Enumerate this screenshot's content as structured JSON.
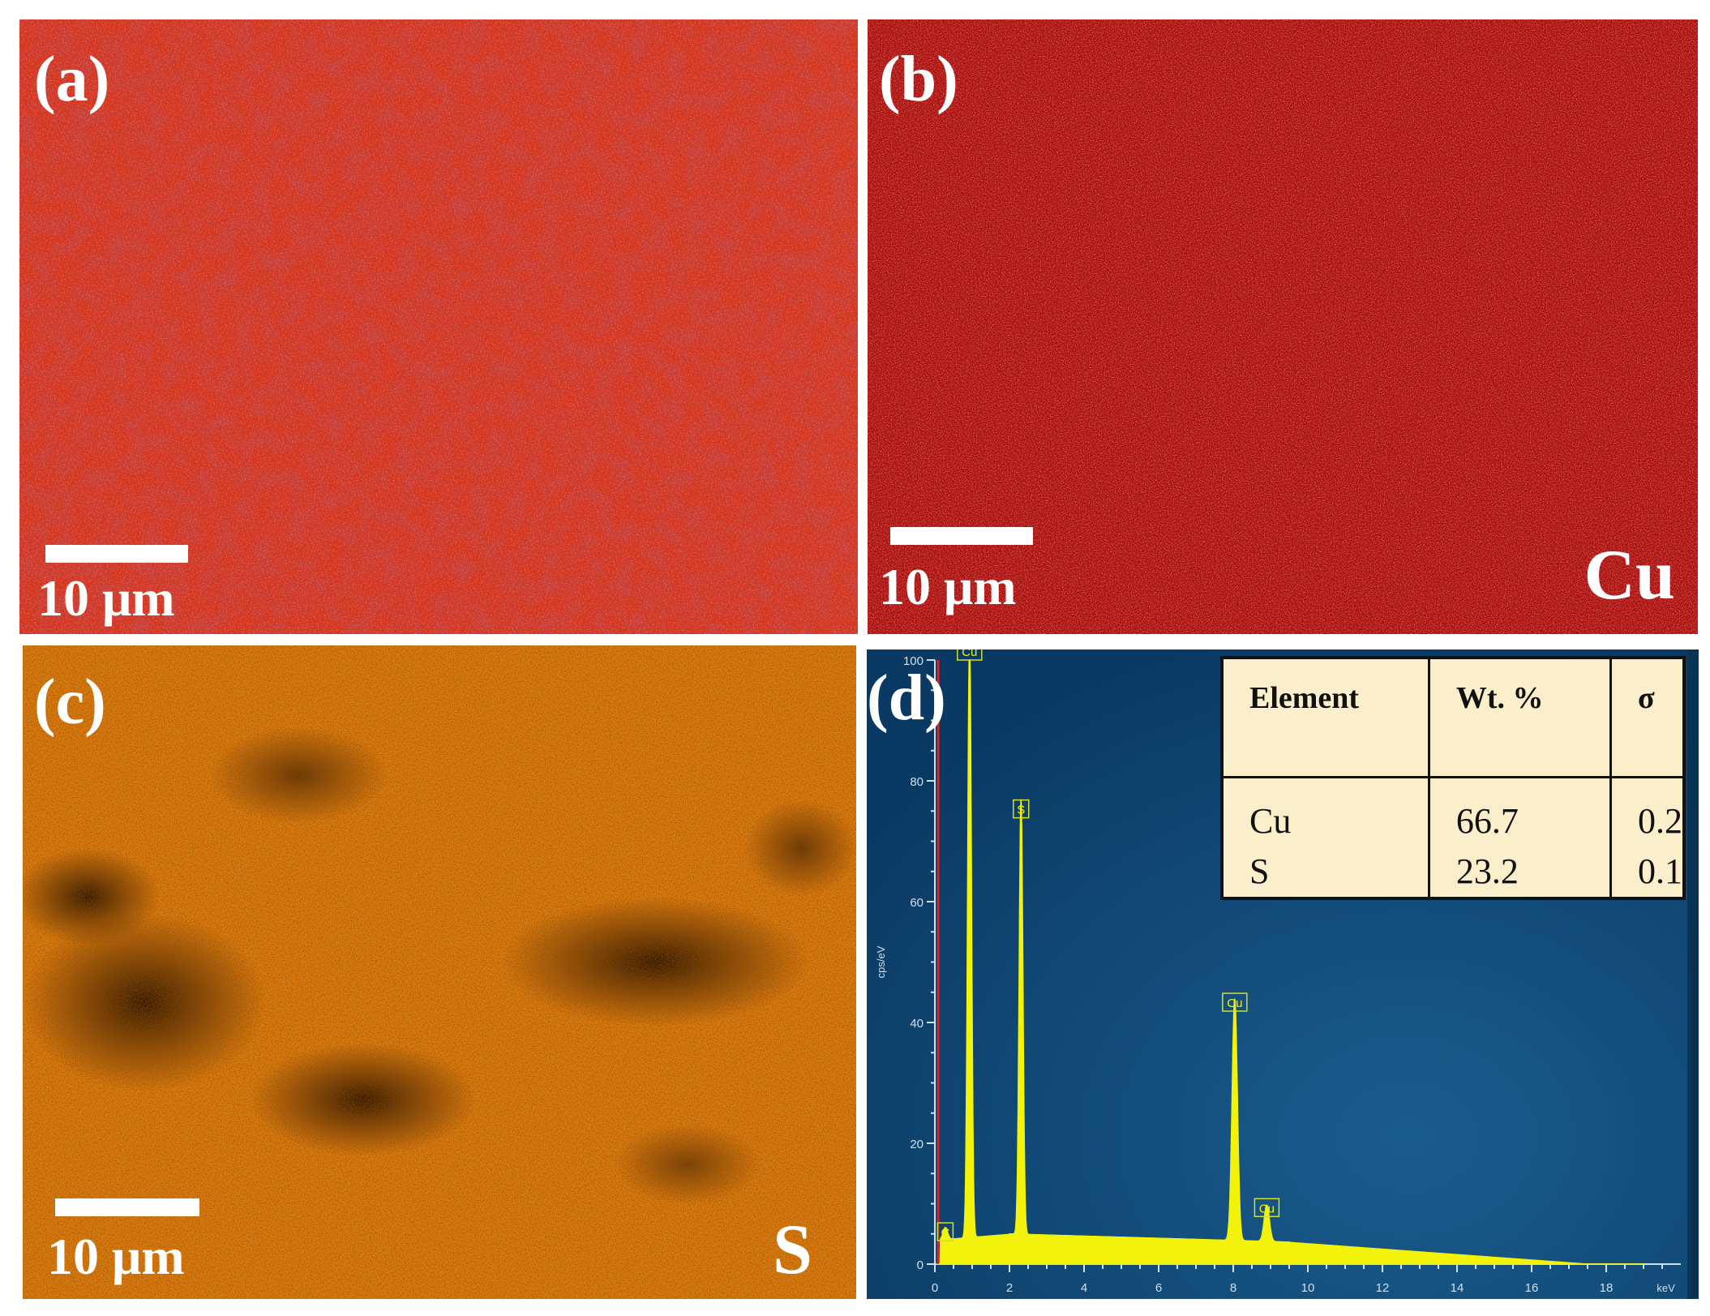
{
  "panels": {
    "a": {
      "label": "(a)",
      "scale": "10 μm"
    },
    "b": {
      "label": "(b)",
      "scale": "10 μm",
      "element": "Cu"
    },
    "c": {
      "label": "(c)",
      "scale": "10 μm",
      "element": "S"
    },
    "d": {
      "label": "(d)"
    }
  },
  "colors": {
    "cu_map": "#b3110f",
    "s_map": "#d9720a",
    "sem": "#d2331d",
    "spectrum_bg": "#0b3d66",
    "spectrum_trace": "#f2f20a",
    "marker_line": "#e0201c"
  },
  "table": {
    "headers": [
      "Element",
      "Wt. %",
      "σ"
    ],
    "rows": [
      {
        "element": "Cu",
        "wt": "66.7",
        "sigma": "0.2"
      },
      {
        "element": "S",
        "wt": "23.2",
        "sigma": "0.1"
      }
    ]
  },
  "chart_data": {
    "type": "line",
    "xlabel": "keV",
    "ylabel": "cps/eV",
    "xlim": [
      0,
      20
    ],
    "ylim": [
      0,
      100
    ],
    "x_ticks": [
      "0",
      "2",
      "4",
      "6",
      "8",
      "10",
      "12",
      "14",
      "16",
      "18"
    ],
    "y_ticks": [
      "0",
      "20",
      "40",
      "60",
      "80",
      "100"
    ],
    "peaks": [
      {
        "label": "C",
        "x": 0.28,
        "y": 2
      },
      {
        "label": "Cu",
        "x": 0.93,
        "y": 100
      },
      {
        "label": "S",
        "x": 2.31,
        "y": 72
      },
      {
        "label": "Cu",
        "x": 8.04,
        "y": 40
      },
      {
        "label": "Cu",
        "x": 8.9,
        "y": 6
      }
    ]
  }
}
